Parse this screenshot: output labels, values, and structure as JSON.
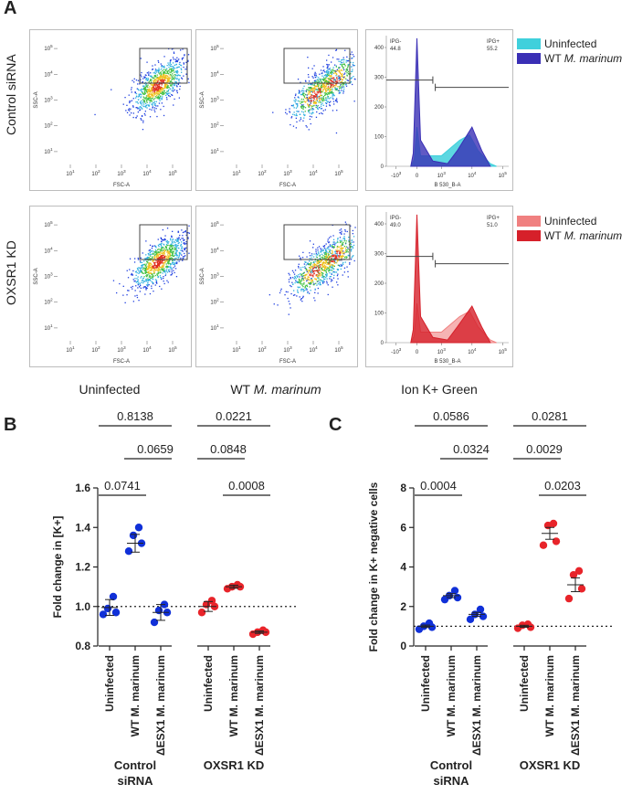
{
  "panel_a": {
    "letter": "A",
    "row_labels": [
      "Control siRNA",
      "OXSR1 KD"
    ],
    "col_labels": {
      "uninfected": "Uninfected",
      "wt_prefix": "WT ",
      "wt_species": "M. marinum",
      "ion": "Ion K+ Green"
    },
    "scatter_axes": {
      "x": "FSC-A",
      "y": "SSC-A",
      "ticks": [
        "10^1",
        "10^2",
        "10^3",
        "10^4",
        "10^5"
      ]
    },
    "histogram_axis": {
      "x": "B 530_B-A",
      "xticks": [
        "-10^3",
        "0",
        "10^3",
        "10^4",
        "10^5"
      ]
    },
    "histograms": [
      {
        "ipg_neg_label": "IPG-",
        "ipg_neg_value": "44.8",
        "ipg_pos_label": "IPG+",
        "ipg_pos_value": "55.2",
        "yticks": [
          "0",
          "100",
          "200",
          "300",
          "400"
        ],
        "legend": [
          {
            "label": "Uninfected",
            "color": "#3fd0dc"
          },
          {
            "label_prefix": "WT ",
            "label_italic": "M. marinum",
            "color": "#3a2fb5"
          }
        ]
      },
      {
        "ipg_neg_label": "IPG-",
        "ipg_neg_value": "49.0",
        "ipg_pos_label": "IPG+",
        "ipg_pos_value": "51.0",
        "yticks": [
          "0",
          "100",
          "200",
          "300",
          "400"
        ],
        "legend": [
          {
            "label": "Uninfected",
            "color": "#f08080"
          },
          {
            "label_prefix": "WT ",
            "label_italic": "M. marinum",
            "color": "#d6202a"
          }
        ]
      }
    ]
  },
  "chart_data": [
    {
      "type": "scatter",
      "panel": "B",
      "ylabel": "Fold change in [K+]",
      "ylim": [
        0.8,
        1.6
      ],
      "yticks": [
        "0.8",
        "1.0",
        "1.2",
        "1.4",
        "1.6"
      ],
      "reference_line": 1.0,
      "categories": [
        "Uninfected",
        "WT M. marinum",
        "ΔESX1 M. marinum",
        "Uninfected",
        "WT M. marinum",
        "ΔESX1 M. marinum"
      ],
      "groups": [
        {
          "name": "Control siRNA",
          "color": "#1030d8"
        },
        {
          "name": "OXSR1 KD",
          "color": "#e8242a"
        }
      ],
      "series": [
        {
          "group": 0,
          "category": 0,
          "values": [
            0.96,
            0.97,
            0.99,
            1.05
          ],
          "mean": 0.995,
          "sem": 0.04
        },
        {
          "group": 0,
          "category": 1,
          "values": [
            1.28,
            1.32,
            1.36,
            1.4
          ],
          "mean": 1.32,
          "sem": 0.045
        },
        {
          "group": 0,
          "category": 2,
          "values": [
            0.92,
            0.97,
            0.98,
            1.01
          ],
          "mean": 0.97,
          "sem": 0.04
        },
        {
          "group": 1,
          "category": 3,
          "values": [
            0.97,
            1.0,
            1.01,
            1.03
          ],
          "mean": 1.0,
          "sem": 0.025
        },
        {
          "group": 1,
          "category": 4,
          "values": [
            1.09,
            1.1,
            1.1,
            1.11
          ],
          "mean": 1.1,
          "sem": 0.008
        },
        {
          "group": 1,
          "category": 5,
          "values": [
            0.86,
            0.87,
            0.87,
            0.88
          ],
          "mean": 0.87,
          "sem": 0.006
        }
      ],
      "comparisons": [
        {
          "label": "0.8138",
          "from": 0,
          "to": 2,
          "level": 3
        },
        {
          "label": "0.0659",
          "from": 1,
          "to": 2,
          "level": 2
        },
        {
          "label": "0.0741",
          "from": 0,
          "to": 1,
          "level": 1
        },
        {
          "label": "0.0221",
          "from": 3,
          "to": 5,
          "level": 3
        },
        {
          "label": "0.0848",
          "from": 3,
          "to": 4,
          "level": 2
        },
        {
          "label": "0.0008",
          "from": 4,
          "to": 5,
          "level": 1
        }
      ]
    },
    {
      "type": "scatter",
      "panel": "C",
      "ylabel": "Fold change in K+ negative cells",
      "ylim": [
        0,
        8
      ],
      "yticks": [
        "0",
        "2",
        "4",
        "6",
        "8"
      ],
      "reference_line": 1.0,
      "categories": [
        "Uninfected",
        "WT M. marinum",
        "ΔESX1 M. marinum",
        "Uninfected",
        "WT M. marinum",
        "ΔESX1 M. marinum"
      ],
      "groups": [
        {
          "name": "Control siRNA",
          "color": "#1030d8"
        },
        {
          "name": "OXSR1 KD",
          "color": "#e8242a"
        }
      ],
      "series": [
        {
          "group": 0,
          "category": 0,
          "values": [
            0.85,
            0.95,
            1.0,
            1.15
          ],
          "mean": 1.0,
          "sem": 0.06
        },
        {
          "group": 0,
          "category": 1,
          "values": [
            2.35,
            2.45,
            2.55,
            2.8
          ],
          "mean": 2.55,
          "sem": 0.1
        },
        {
          "group": 0,
          "category": 2,
          "values": [
            1.35,
            1.5,
            1.6,
            1.85
          ],
          "mean": 1.6,
          "sem": 0.1
        },
        {
          "group": 1,
          "category": 3,
          "values": [
            0.9,
            0.95,
            1.05,
            1.1
          ],
          "mean": 1.0,
          "sem": 0.05
        },
        {
          "group": 1,
          "category": 4,
          "values": [
            5.1,
            5.3,
            6.1,
            6.2
          ],
          "mean": 5.7,
          "sem": 0.3
        },
        {
          "group": 1,
          "category": 5,
          "values": [
            2.4,
            2.9,
            3.6,
            3.8
          ],
          "mean": 3.1,
          "sem": 0.35
        }
      ],
      "comparisons": [
        {
          "label": "0.0586",
          "from": 0,
          "to": 2,
          "level": 3
        },
        {
          "label": "0.0324",
          "from": 1,
          "to": 2,
          "level": 2
        },
        {
          "label": "0.0004",
          "from": 0,
          "to": 1,
          "level": 1
        },
        {
          "label": "0.0281",
          "from": 3,
          "to": 5,
          "level": 3
        },
        {
          "label": "0.0029",
          "from": 3,
          "to": 4,
          "level": 2
        },
        {
          "label": "0.0203",
          "from": 4,
          "to": 5,
          "level": 1
        }
      ]
    }
  ],
  "group_labels": [
    [
      "Control",
      "siRNA"
    ],
    [
      "OXSR1 KD"
    ]
  ]
}
